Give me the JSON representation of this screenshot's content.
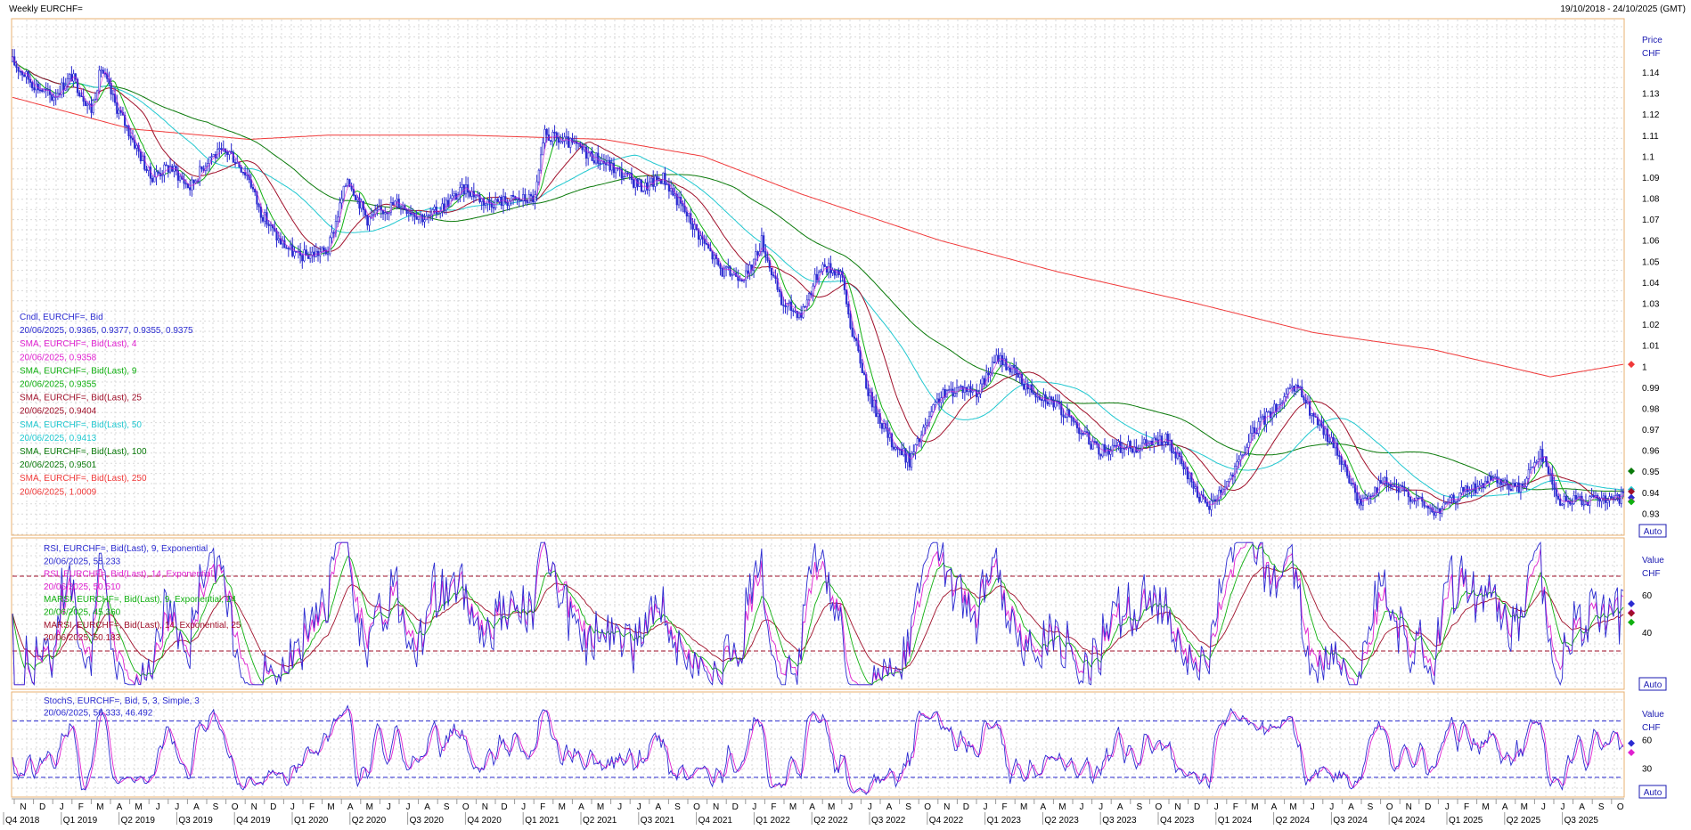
{
  "header": {
    "title": "Weekly EURCHF=",
    "range": "19/10/2018 - 24/10/2025 (GMT)"
  },
  "chart_data": {
    "type": "candlestick",
    "instrument": "EURCHF=",
    "price_panel": {
      "axis_title": [
        "Price",
        "CHF"
      ],
      "yticks": [
        1.14,
        1.13,
        1.12,
        1.11,
        1.1,
        1.09,
        1.08,
        1.07,
        1.06,
        1.05,
        1.04,
        1.03,
        1.02,
        1.01,
        1,
        0.99,
        0.98,
        0.97,
        0.96,
        0.95,
        0.94,
        0.93
      ],
      "ylim": [
        0.92,
        1.165
      ],
      "auto_label": "Auto",
      "legend": [
        {
          "text": "Cndl, EURCHF=, Bid",
          "color": "#2b2bd1"
        },
        {
          "text": "20/06/2025, 0.9365, 0.9377, 0.9355, 0.9375",
          "color": "#2b2bd1"
        },
        {
          "text": "SMA, EURCHF=, Bid(Last),  4",
          "color": "#e020d0"
        },
        {
          "text": "20/06/2025, 0.9358",
          "color": "#e020d0"
        },
        {
          "text": "SMA, EURCHF=, Bid(Last),  9",
          "color": "#10b010"
        },
        {
          "text": "20/06/2025, 0.9355",
          "color": "#10b010"
        },
        {
          "text": "SMA, EURCHF=, Bid(Last),  25",
          "color": "#a0102a"
        },
        {
          "text": "20/06/2025, 0.9404",
          "color": "#a0102a"
        },
        {
          "text": "SMA, EURCHF=, Bid(Last),  50",
          "color": "#20c8d0"
        },
        {
          "text": "20/06/2025, 0.9413",
          "color": "#20c8d0"
        },
        {
          "text": "SMA, EURCHF=, Bid(Last),  100",
          "color": "#0a7a0a"
        },
        {
          "text": "20/06/2025, 0.9501",
          "color": "#0a7a0a"
        },
        {
          "text": "SMA, EURCHF=, Bid(Last),  250",
          "color": "#f03a3a"
        },
        {
          "text": "20/06/2025, 1.0009",
          "color": "#f03a3a"
        }
      ],
      "price_path": [
        [
          0,
          1.145
        ],
        [
          10,
          1.135
        ],
        [
          20,
          1.128
        ],
        [
          30,
          1.138
        ],
        [
          40,
          1.122
        ],
        [
          45,
          1.142
        ],
        [
          52,
          1.125
        ],
        [
          60,
          1.11
        ],
        [
          70,
          1.09
        ],
        [
          80,
          1.095
        ],
        [
          90,
          1.085
        ],
        [
          100,
          1.1
        ],
        [
          110,
          1.102
        ],
        [
          120,
          1.09
        ],
        [
          125,
          1.075
        ],
        [
          135,
          1.06
        ],
        [
          145,
          1.052
        ],
        [
          160,
          1.055
        ],
        [
          170,
          1.09
        ],
        [
          180,
          1.07
        ],
        [
          195,
          1.078
        ],
        [
          210,
          1.07
        ],
        [
          230,
          1.085
        ],
        [
          240,
          1.078
        ],
        [
          265,
          1.08
        ],
        [
          270,
          1.11
        ],
        [
          285,
          1.105
        ],
        [
          300,
          1.097
        ],
        [
          320,
          1.085
        ],
        [
          330,
          1.09
        ],
        [
          340,
          1.075
        ],
        [
          350,
          1.06
        ],
        [
          360,
          1.045
        ],
        [
          373,
          1.043
        ],
        [
          380,
          1.06
        ],
        [
          390,
          1.03
        ],
        [
          400,
          1.025
        ],
        [
          410,
          1.048
        ],
        [
          420,
          1.045
        ],
        [
          425,
          1.02
        ],
        [
          435,
          0.985
        ],
        [
          445,
          0.965
        ],
        [
          455,
          0.955
        ],
        [
          470,
          0.985
        ],
        [
          480,
          0.99
        ],
        [
          490,
          0.988
        ],
        [
          500,
          1.005
        ],
        [
          515,
          0.99
        ],
        [
          525,
          0.985
        ],
        [
          540,
          0.972
        ],
        [
          550,
          0.96
        ],
        [
          570,
          0.962
        ],
        [
          585,
          0.965
        ],
        [
          598,
          0.945
        ],
        [
          606,
          0.932
        ],
        [
          620,
          0.95
        ],
        [
          630,
          0.97
        ],
        [
          645,
          0.985
        ],
        [
          652,
          0.99
        ],
        [
          660,
          0.975
        ],
        [
          672,
          0.96
        ],
        [
          683,
          0.935
        ],
        [
          695,
          0.945
        ],
        [
          710,
          0.938
        ],
        [
          722,
          0.93
        ],
        [
          735,
          0.94
        ],
        [
          750,
          0.945
        ],
        [
          765,
          0.942
        ],
        [
          775,
          0.96
        ],
        [
          785,
          0.935
        ],
        [
          795,
          0.937
        ],
        [
          810,
          0.936
        ],
        [
          817,
          0.9375
        ]
      ],
      "candle_seed": 17,
      "sma_4_offset": 0,
      "sma_9_window": 9,
      "sma_25_window": 25,
      "sma_50_window": 50,
      "sma_100_window": 100,
      "sma_250_path": [
        [
          0,
          1.128
        ],
        [
          60,
          1.113
        ],
        [
          120,
          1.108
        ],
        [
          160,
          1.11
        ],
        [
          230,
          1.11
        ],
        [
          300,
          1.108
        ],
        [
          350,
          1.1
        ],
        [
          400,
          1.082
        ],
        [
          470,
          1.06
        ],
        [
          530,
          1.045
        ],
        [
          600,
          1.03
        ],
        [
          660,
          1.016
        ],
        [
          720,
          1.008
        ],
        [
          780,
          0.995
        ],
        [
          817,
          1.0009
        ]
      ],
      "right_markers": [
        {
          "value": 1.0009,
          "color": "#f03a3a"
        },
        {
          "value": 0.9501,
          "color": "#0a7a0a"
        },
        {
          "value": 0.9413,
          "color": "#20c8d0"
        },
        {
          "value": 0.9404,
          "color": "#a0102a"
        },
        {
          "value": 0.9375,
          "color": "#2b2bd1"
        },
        {
          "value": 0.9358,
          "color": "#e020d0"
        },
        {
          "value": 0.9355,
          "color": "#10b010"
        }
      ]
    },
    "rsi_panel": {
      "axis_title": [
        "Value",
        "CHF"
      ],
      "yticks": [
        60,
        40
      ],
      "ylim": [
        10,
        90
      ],
      "overbought": 70,
      "oversold": 30,
      "auto_label": "Auto",
      "legend": [
        {
          "text": "RSI, EURCHF=, Bid(Last),  9, Exponential",
          "color": "#2b2bd1"
        },
        {
          "text": "20/06/2025, 55.233",
          "color": "#2b2bd1"
        },
        {
          "text": "RSI, EURCHF=, Bid(Last),  14, Exponential",
          "color": "#e020d0"
        },
        {
          "text": "20/06/2025, 50.510",
          "color": "#e020d0"
        },
        {
          "text": "MARSI, EURCHF=, Bid(Last),  9, Exponential, 14",
          "color": "#10b010"
        },
        {
          "text": "20/06/2025, 45.360",
          "color": "#10b010"
        },
        {
          "text": "MARSI, EURCHF=, Bid(Last),  14, Exponential, 25",
          "color": "#a0102a"
        },
        {
          "text": "20/06/2025, 50.183",
          "color": "#a0102a"
        }
      ],
      "right_markers": [
        {
          "value": 55.233,
          "color": "#2b2bd1"
        },
        {
          "value": 50.51,
          "color": "#e020d0"
        },
        {
          "value": 50.183,
          "color": "#a0102a"
        },
        {
          "value": 45.36,
          "color": "#10b010"
        }
      ]
    },
    "stoch_panel": {
      "axis_title": [
        "Value",
        "CHF"
      ],
      "yticks": [
        60,
        30
      ],
      "ylim": [
        0,
        110
      ],
      "upper_line": 80,
      "lower_line": 20,
      "auto_label": "Auto",
      "legend": [
        {
          "text": "StochS, EURCHF=, Bid,  5, 3, Simple, 3",
          "color": "#2b2bd1"
        },
        {
          "text": "20/06/2025, 56.333, 46.492",
          "color": "#2b2bd1"
        }
      ],
      "right_markers": [
        {
          "value": 56.333,
          "color": "#2b2bd1"
        },
        {
          "value": 46.492,
          "color": "#e020d0"
        }
      ]
    },
    "x_months": [
      "N",
      "D",
      "J",
      "F",
      "M",
      "A",
      "M",
      "J",
      "J",
      "A",
      "S",
      "O",
      "N",
      "D",
      "J",
      "F",
      "M",
      "A",
      "M",
      "J",
      "J",
      "A",
      "S",
      "O",
      "N",
      "D",
      "J",
      "F",
      "M",
      "A",
      "M",
      "J",
      "J",
      "A",
      "S",
      "O",
      "N",
      "D",
      "J",
      "F",
      "M",
      "A",
      "M",
      "J",
      "J",
      "A",
      "S",
      "O",
      "N",
      "D",
      "J",
      "F",
      "M",
      "A",
      "M",
      "J",
      "J",
      "A",
      "S",
      "O",
      "N",
      "D",
      "J",
      "F",
      "M",
      "A",
      "M",
      "J",
      "J",
      "A",
      "S",
      "O",
      "N",
      "D",
      "J",
      "F",
      "M",
      "A",
      "M",
      "J",
      "J",
      "A",
      "S",
      "O",
      "N",
      "D",
      "J",
      "F",
      "M",
      "A",
      "M",
      "J",
      "J",
      "A",
      "S",
      "O"
    ],
    "x_quarters": [
      "Q4 2018",
      "Q1 2019",
      "Q2 2019",
      "Q3 2019",
      "Q4 2019",
      "Q1 2020",
      "Q2 2020",
      "Q3 2020",
      "Q4 2020",
      "Q1 2021",
      "Q2 2021",
      "Q3 2021",
      "Q4 2021",
      "Q1 2022",
      "Q2 2022",
      "Q3 2022",
      "Q4 2022",
      "Q1 2023",
      "Q2 2023",
      "Q3 2023",
      "Q4 2023",
      "Q1 2024",
      "Q2 2024",
      "Q3 2024",
      "Q4 2024",
      "Q1 2025",
      "Q2 2025",
      "Q3 2025"
    ]
  }
}
